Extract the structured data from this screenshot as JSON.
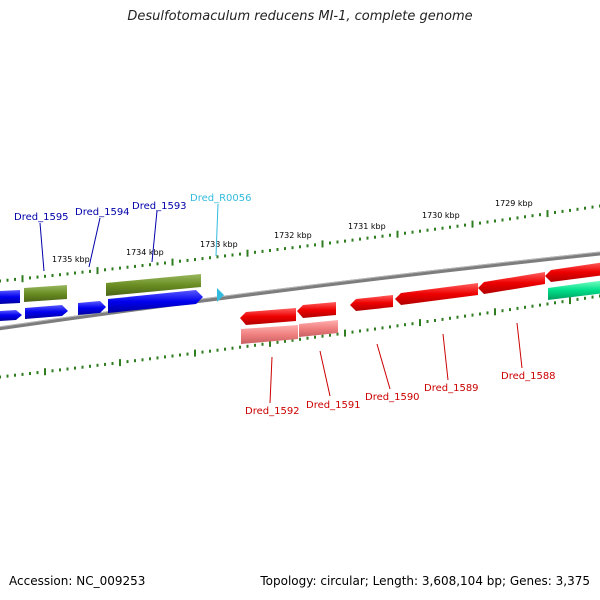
{
  "title": "Desulfotomaculum reducens MI-1, complete genome",
  "footer": {
    "accession": "Accession: NC_009253",
    "summary": "Topology: circular; Length: 3,608,104 bp; Genes: 3,375"
  },
  "colors": {
    "forward_gene": "#0000ee",
    "forward_other": "#6b8e23",
    "reverse_gene": "#ee0000",
    "reverse_pseudo": "#f08080",
    "reverse_other": "#00e08a",
    "rna_label": "#33bbdd",
    "tick": "#2e7d1e",
    "backbone": "#808080"
  },
  "scale_labels": [
    "1735 kbp",
    "1734 kbp",
    "1733 kbp",
    "1732 kbp",
    "1731 kbp",
    "1730 kbp",
    "1729 kbp"
  ],
  "forward_labels": [
    "Dred_1595",
    "Dred_1594",
    "Dred_1593"
  ],
  "rna_label": "Dred_R0056",
  "reverse_labels": [
    "Dred_1592",
    "Dred_1591",
    "Dred_1590",
    "Dred_1589",
    "Dred_1588"
  ]
}
